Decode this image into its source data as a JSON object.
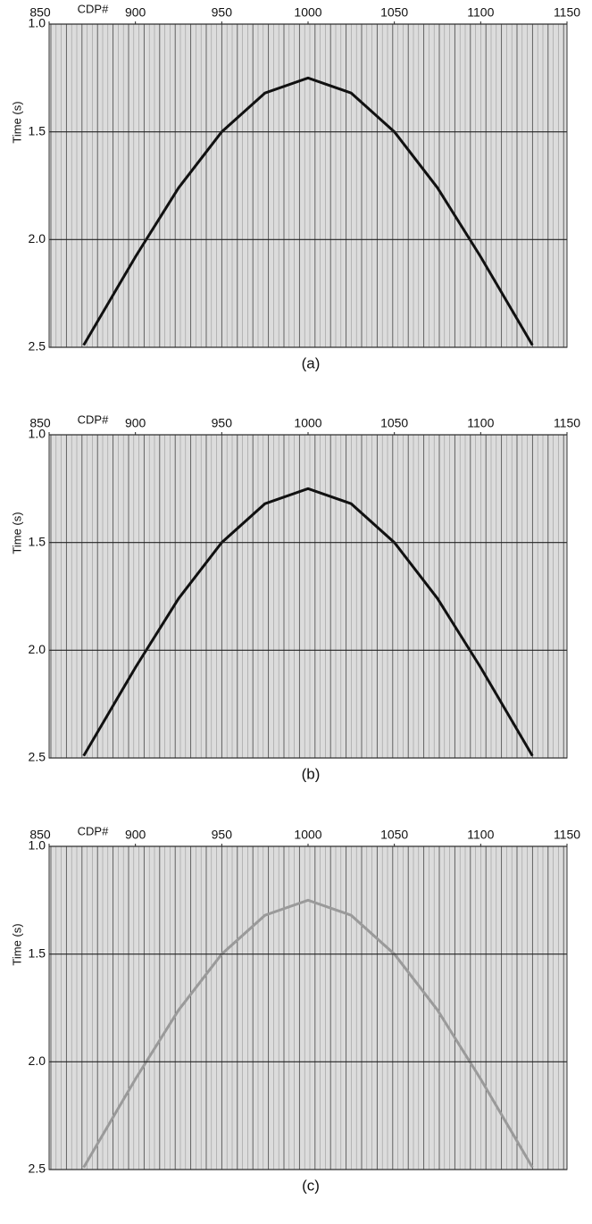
{
  "chart_data": [
    {
      "type": "seismic",
      "caption": "(a)",
      "x_label": "CDP#",
      "y_label": "Time (s)",
      "xlim": [
        850,
        1150
      ],
      "xticks": [
        850,
        900,
        950,
        1000,
        1050,
        1100,
        1150
      ],
      "ylim": [
        1.0,
        2.5
      ],
      "yticks": [
        {
          "value": 1,
          "label": "1.0"
        },
        1.5,
        {
          "value": 2,
          "label": "2.0"
        },
        2.5
      ],
      "grid": true,
      "x": [
        870,
        900,
        925,
        950,
        975,
        1000,
        1025,
        1050,
        1075,
        1100,
        1130
      ],
      "values": [
        2.49,
        2.08,
        1.76,
        1.5,
        1.32,
        1.25,
        1.32,
        1.5,
        1.76,
        2.08,
        2.49
      ],
      "color": "#111111"
    },
    {
      "type": "seismic",
      "caption": "(b)",
      "x_label": "CDP#",
      "y_label": "Time (s)",
      "xlim": [
        850,
        1150
      ],
      "xticks": [
        850,
        900,
        950,
        1000,
        1050,
        1100,
        1150
      ],
      "ylim": [
        1.0,
        2.5
      ],
      "yticks": [
        {
          "value": 1,
          "label": "1.0"
        },
        1.5,
        {
          "value": 2,
          "label": "2.0"
        },
        2.5
      ],
      "grid": true,
      "x": [
        870,
        900,
        925,
        950,
        975,
        1000,
        1025,
        1050,
        1075,
        1100,
        1130
      ],
      "values": [
        2.49,
        2.08,
        1.76,
        1.5,
        1.32,
        1.25,
        1.32,
        1.5,
        1.76,
        2.08,
        2.49
      ],
      "color": "#111111"
    },
    {
      "type": "seismic",
      "caption": "(c)",
      "x_label": "CDP#",
      "y_label": "Time (s)",
      "xlim": [
        850,
        1150
      ],
      "xticks": [
        850,
        900,
        950,
        1000,
        1050,
        1100,
        1150
      ],
      "ylim": [
        1.0,
        2.5
      ],
      "yticks": [
        {
          "value": 1,
          "label": "1.0"
        },
        1.5,
        {
          "value": 2,
          "label": "2.0"
        },
        2.5
      ],
      "grid": true,
      "x": [
        870,
        900,
        925,
        950,
        975,
        1000,
        1025,
        1050,
        1075,
        1100,
        1130
      ],
      "values": [
        2.49,
        2.08,
        1.76,
        1.5,
        1.32,
        1.25,
        1.32,
        1.5,
        1.76,
        2.08,
        2.49
      ],
      "color": "#9a9a9a"
    }
  ]
}
